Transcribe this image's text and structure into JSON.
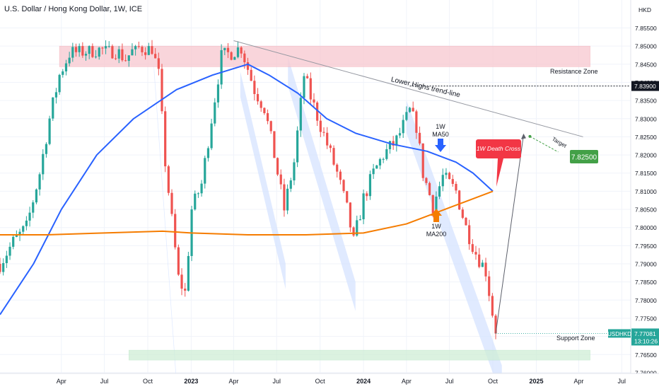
{
  "header": {
    "title": "U.S. Dollar / Hong Kong Dollar, 1W, ICE",
    "currency": "HKD"
  },
  "colors": {
    "up": "#26a69a",
    "down": "#ef5350",
    "ma50": "#2962ff",
    "ma200": "#f57c00",
    "resistance_zone": "#f8c8cf",
    "support_zone": "#cfeed6",
    "channel": "#d6e3ff",
    "death_cross": "#f23645",
    "target_badge": "#43a047",
    "current_price_badge": "#26a69a"
  },
  "chart_data": {
    "type": "candlestick",
    "title": "U.S. Dollar / Hong Kong Dollar, 1W, ICE",
    "ylabel": "HKD",
    "ylim": [
      7.7555,
      7.8627
    ],
    "y_ticks": [
      "7.85500",
      "7.85000",
      "7.84500",
      "7.84000",
      "7.83500",
      "7.83000",
      "7.82500",
      "7.82000",
      "7.81500",
      "7.81000",
      "7.80500",
      "7.80000",
      "7.79500",
      "7.79000",
      "7.78500",
      "7.78000",
      "7.77500",
      "7.77000",
      "7.76500",
      "7.76000"
    ],
    "x_ticks": [
      {
        "label": "Apr",
        "date": "2022-04-01"
      },
      {
        "label": "Jul",
        "date": "2022-07-01"
      },
      {
        "label": "Oct",
        "date": "2022-10-01"
      },
      {
        "label": "2023",
        "date": "2023-01-01"
      },
      {
        "label": "Apr",
        "date": "2023-04-01"
      },
      {
        "label": "Jul",
        "date": "2023-07-01"
      },
      {
        "label": "Oct",
        "date": "2023-10-01"
      },
      {
        "label": "2024",
        "date": "2024-01-01"
      },
      {
        "label": "Apr",
        "date": "2024-04-01"
      },
      {
        "label": "Jul",
        "date": "2024-07-01"
      },
      {
        "label": "Oct",
        "date": "2024-10-01"
      },
      {
        "label": "2025",
        "date": "2025-01-01"
      },
      {
        "label": "Apr",
        "date": "2025-04-01"
      },
      {
        "label": "Jul",
        "date": "2025-07-01"
      }
    ],
    "xlim": [
      "2021-11-22",
      "2025-07-20"
    ],
    "close_path": [
      [
        "2021-11-22",
        7.79
      ],
      [
        "2021-12-20",
        7.796
      ],
      [
        "2022-01-17",
        7.8
      ],
      [
        "2022-02-14",
        7.815
      ],
      [
        "2022-03-07",
        7.83
      ],
      [
        "2022-03-28",
        7.842
      ],
      [
        "2022-04-18",
        7.848
      ],
      [
        "2022-06-13",
        7.849
      ],
      [
        "2022-07-25",
        7.8488
      ],
      [
        "2022-08-15",
        7.8465
      ],
      [
        "2022-09-05",
        7.8495
      ],
      [
        "2022-10-10",
        7.8496
      ],
      [
        "2022-10-24",
        7.842
      ],
      [
        "2022-11-07",
        7.818
      ],
      [
        "2022-11-21",
        7.802
      ],
      [
        "2022-12-05",
        7.786
      ],
      [
        "2022-12-19",
        7.782
      ],
      [
        "2023-01-02",
        7.805
      ],
      [
        "2023-01-23",
        7.812
      ],
      [
        "2023-02-13",
        7.83
      ],
      [
        "2023-03-06",
        7.847
      ],
      [
        "2023-04-17",
        7.8496
      ],
      [
        "2023-05-15",
        7.838
      ],
      [
        "2023-06-05",
        7.833
      ],
      [
        "2023-06-26",
        7.82
      ],
      [
        "2023-07-17",
        7.805
      ],
      [
        "2023-08-07",
        7.818
      ],
      [
        "2023-08-28",
        7.842
      ],
      [
        "2023-09-11",
        7.836
      ],
      [
        "2023-10-09",
        7.8255
      ],
      [
        "2023-11-06",
        7.815
      ],
      [
        "2023-11-27",
        7.805
      ],
      [
        "2023-12-11",
        7.796
      ],
      [
        "2024-01-01",
        7.808
      ],
      [
        "2024-01-22",
        7.815
      ],
      [
        "2024-02-12",
        7.82
      ],
      [
        "2024-03-11",
        7.824
      ],
      [
        "2024-04-08",
        7.832
      ],
      [
        "2024-04-22",
        7.828
      ],
      [
        "2024-05-06",
        7.815
      ],
      [
        "2024-05-27",
        7.806
      ],
      [
        "2024-06-17",
        7.814
      ],
      [
        "2024-07-15",
        7.81
      ],
      [
        "2024-08-05",
        7.8
      ],
      [
        "2024-08-26",
        7.793
      ],
      [
        "2024-09-16",
        7.788
      ],
      [
        "2024-10-07",
        7.7708
      ]
    ],
    "series": [
      {
        "name": "1W MA50",
        "points": [
          [
            "2021-11-22",
            7.776
          ],
          [
            "2022-02-01",
            7.79
          ],
          [
            "2022-04-01",
            7.805
          ],
          [
            "2022-06-15",
            7.82
          ],
          [
            "2022-09-01",
            7.83
          ],
          [
            "2022-12-01",
            7.838
          ],
          [
            "2023-02-15",
            7.842
          ],
          [
            "2023-05-01",
            7.845
          ],
          [
            "2023-06-15",
            7.842
          ],
          [
            "2023-08-15",
            7.837
          ],
          [
            "2023-10-15",
            7.83
          ],
          [
            "2023-12-15",
            7.826
          ],
          [
            "2024-03-01",
            7.823
          ],
          [
            "2024-05-15",
            7.821
          ],
          [
            "2024-07-15",
            7.818
          ],
          [
            "2024-08-20",
            7.815
          ],
          [
            "2024-10-01",
            7.81
          ]
        ]
      },
      {
        "name": "1W MA200",
        "points": [
          [
            "2021-11-22",
            7.798
          ],
          [
            "2022-03-01",
            7.798
          ],
          [
            "2022-07-01",
            7.7985
          ],
          [
            "2022-11-01",
            7.799
          ],
          [
            "2023-01-01",
            7.7985
          ],
          [
            "2023-05-01",
            7.798
          ],
          [
            "2023-09-01",
            7.798
          ],
          [
            "2024-01-01",
            7.7985
          ],
          [
            "2024-04-01",
            7.801
          ],
          [
            "2024-06-01",
            7.804
          ],
          [
            "2024-08-01",
            7.807
          ],
          [
            "2024-10-01",
            7.81
          ]
        ]
      }
    ],
    "zones": [
      {
        "label": "Resistance Zone",
        "from": "2022-03-28",
        "to": "2025-04-25",
        "y_low": 7.8443,
        "y_high": 7.85
      },
      {
        "label": "Support Zone",
        "from": "2022-08-22",
        "to": "2025-04-25",
        "y_low": 7.7652,
        "y_high": 7.7662
      }
    ],
    "channels": [
      {
        "start": "2022-10-14",
        "y_start": 7.845,
        "end": "2022-12-01",
        "y_end": 7.758,
        "width": 7.002
      },
      {
        "start": "2023-04-15",
        "y_start": 7.843,
        "end": "2023-07-20",
        "y_end": 7.79,
        "width": 7.007
      },
      {
        "start": "2023-07-25",
        "y_start": 7.847,
        "end": "2023-12-15",
        "y_end": 7.785,
        "width": 7.008
      },
      {
        "start": "2024-04-01",
        "y_start": 7.835,
        "end": "2024-10-20",
        "y_end": 7.762,
        "width": 7.009
      }
    ],
    "trendline": {
      "label": "Lower Highs trend-line",
      "start": "2023-04-01",
      "y_start": 7.8515,
      "end": "2025-04-10",
      "y_end": 7.825
    },
    "level_line": {
      "value": "7.83900",
      "y": 7.839
    },
    "projection": {
      "start": "2024-10-07",
      "y_start": 7.7708,
      "end": "2024-12-05",
      "y_end": 7.8255
    },
    "target": {
      "label": "Target",
      "value": "7.82500"
    },
    "annotations": {
      "ma50_label": [
        "1W",
        "MA50"
      ],
      "ma200_label": [
        "1W",
        "MA200"
      ],
      "death_cross": "1W Death Cross",
      "resistance": "Resistance Zone",
      "support": "Support Zone"
    },
    "last_price": {
      "symbol": "USDHKD",
      "value": "7.77081",
      "countdown": "13:10:26"
    }
  }
}
